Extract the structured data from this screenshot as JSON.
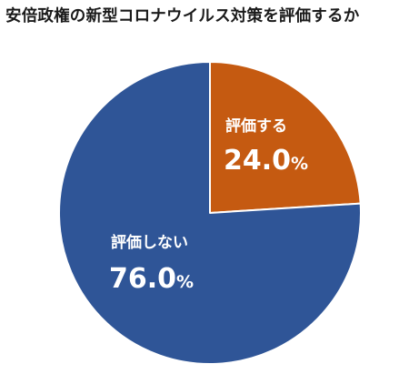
{
  "chart_data": {
    "type": "pie",
    "title": "安倍政権の新型コロナウイルス対策を評価するか",
    "slices": [
      {
        "label": "評価する",
        "value": 24.0,
        "display": "24.0",
        "unit": "%",
        "color": "#c55a11"
      },
      {
        "label": "評価しない",
        "value": 76.0,
        "display": "76.0",
        "unit": "%",
        "color": "#2f5597"
      }
    ],
    "start_angle_deg": 0,
    "direction": "clockwise",
    "border_color": "#ffffff"
  }
}
